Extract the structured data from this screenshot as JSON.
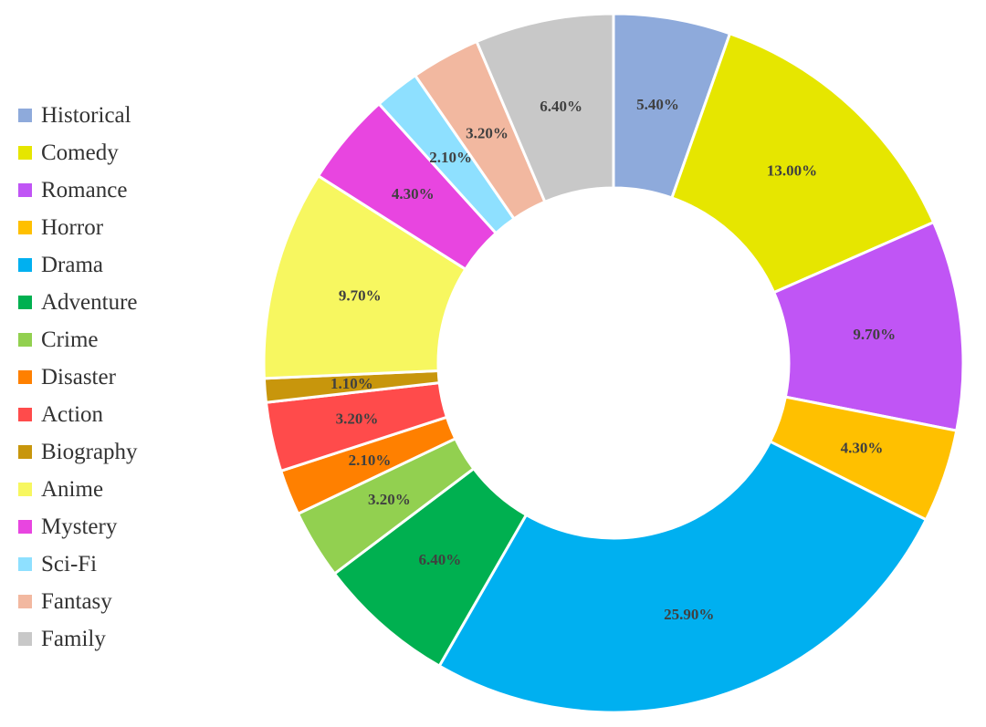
{
  "chart_data": {
    "type": "pie",
    "donut": true,
    "legend_position": "left",
    "start_angle_deg": 0,
    "direction": "clockwise",
    "categories": [
      "Historical",
      "Comedy",
      "Romance",
      "Horror",
      "Drama",
      "Adventure",
      "Crime",
      "Disaster",
      "Action",
      "Biography",
      "Anime",
      "Mystery",
      "Sci-Fi",
      "Fantasy",
      "Family"
    ],
    "values": [
      5.4,
      13.0,
      9.7,
      4.3,
      25.9,
      6.4,
      3.2,
      2.1,
      3.2,
      1.1,
      9.7,
      4.3,
      2.1,
      3.2,
      6.4
    ],
    "labels": [
      "5.40%",
      "13.00%",
      "9.70%",
      "4.30%",
      "25.90%",
      "6.40%",
      "3.20%",
      "2.10%",
      "3.20%",
      "1.10%",
      "9.70%",
      "4.30%",
      "2.10%",
      "3.20%",
      "6.40%"
    ],
    "colors": [
      "#8EAADB",
      "#E6E600",
      "#C055F5",
      "#FFC000",
      "#00B0F0",
      "#00B050",
      "#92D050",
      "#FF8000",
      "#FF4B4B",
      "#C8960C",
      "#F7F760",
      "#E845E0",
      "#8EE0FF",
      "#F2B8A0",
      "#C8C8C8"
    ]
  }
}
